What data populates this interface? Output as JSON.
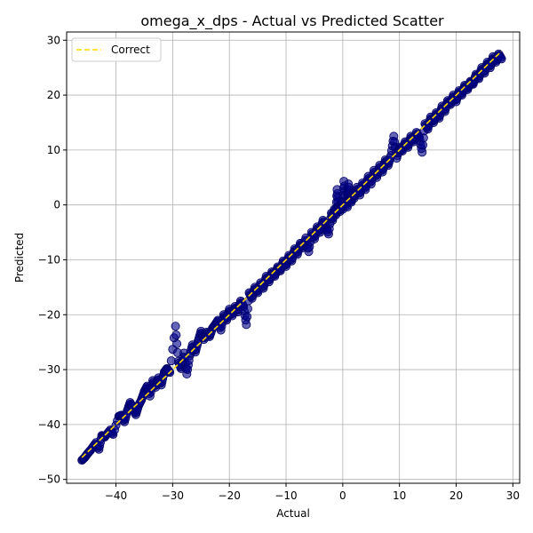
{
  "chart_data": {
    "type": "scatter",
    "title": "omega_x_dps - Actual vs Predicted Scatter",
    "xlabel": "Actual",
    "ylabel": "Predicted",
    "xlim": [
      -48.7,
      31.2
    ],
    "ylim": [
      -50.7,
      31.5
    ],
    "xticks": [
      -40,
      -30,
      -20,
      -10,
      0,
      10,
      20,
      30
    ],
    "yticks": [
      -50,
      -40,
      -30,
      -20,
      -10,
      0,
      10,
      20,
      30
    ],
    "grid": true,
    "legend": {
      "placement": "top-left",
      "entries": [
        "Correct"
      ]
    },
    "colors": {
      "points": "#00008b",
      "points_edge": "#000066",
      "reference_line": "#ffd700"
    },
    "reference_line": {
      "name": "Correct",
      "x": [
        -46,
        28
      ],
      "y": [
        -46,
        28
      ],
      "style": "dashed"
    },
    "series": [
      {
        "points": [
          [
            -46,
            -46.5
          ],
          [
            -45.5,
            -46
          ],
          [
            -45,
            -45.3
          ],
          [
            -44.5,
            -44.7
          ],
          [
            -43.5,
            -43.3
          ],
          [
            -43,
            -44.5
          ],
          [
            -42.5,
            -42
          ],
          [
            -42,
            -42.3
          ],
          [
            -41,
            -41
          ],
          [
            -40.5,
            -41.8
          ],
          [
            -39.5,
            -38.5
          ],
          [
            -39,
            -38.3
          ],
          [
            -38.5,
            -39.5
          ],
          [
            -38,
            -37.5
          ],
          [
            -37.5,
            -36
          ],
          [
            -37,
            -37
          ],
          [
            -36.5,
            -38.2
          ],
          [
            -36,
            -36.5
          ],
          [
            -35.5,
            -35.5
          ],
          [
            -35,
            -34
          ],
          [
            -34.5,
            -33
          ],
          [
            -34,
            -34.8
          ],
          [
            -33.5,
            -32
          ],
          [
            -33,
            -33.2
          ],
          [
            -32.5,
            -31.5
          ],
          [
            -32,
            -32.8
          ],
          [
            -31.5,
            -30.5
          ],
          [
            -31,
            -29.8
          ],
          [
            -30.5,
            -30.5
          ],
          [
            -29.5,
            -22.1
          ],
          [
            -29,
            -28.5
          ],
          [
            -28.5,
            -29.8
          ],
          [
            -28,
            -27
          ],
          [
            -27.5,
            -30.8
          ],
          [
            -27,
            -27.5
          ],
          [
            -26.5,
            -25.5
          ],
          [
            -26,
            -26.8
          ],
          [
            -25.5,
            -24.8
          ],
          [
            -25,
            -23
          ],
          [
            -24.5,
            -24.5
          ],
          [
            -24,
            -23.2
          ],
          [
            -23.5,
            -24
          ],
          [
            -23,
            -22.5
          ],
          [
            -22.5,
            -21.8
          ],
          [
            -22,
            -21
          ],
          [
            -21.5,
            -22.8
          ],
          [
            -21,
            -20
          ],
          [
            -20.5,
            -21
          ],
          [
            -20,
            -19
          ],
          [
            -19.5,
            -20.2
          ],
          [
            -19,
            -18.5
          ],
          [
            -18.5,
            -19.5
          ],
          [
            -18,
            -17.5
          ],
          [
            -17.5,
            -18.5
          ],
          [
            -17,
            -21.8
          ],
          [
            -16.5,
            -16
          ],
          [
            -16,
            -17
          ],
          [
            -15.5,
            -15
          ],
          [
            -15,
            -16
          ],
          [
            -14.5,
            -14.2
          ],
          [
            -14,
            -15.2
          ],
          [
            -13.5,
            -13
          ],
          [
            -13,
            -14
          ],
          [
            -12.5,
            -12.2
          ],
          [
            -12,
            -13
          ],
          [
            -11.5,
            -11.3
          ],
          [
            -11,
            -12
          ],
          [
            -10.5,
            -10.2
          ],
          [
            -10,
            -11.2
          ],
          [
            -9.5,
            -9.2
          ],
          [
            -9,
            -10.2
          ],
          [
            -8.5,
            -8
          ],
          [
            -8,
            -9
          ],
          [
            -7.5,
            -7
          ],
          [
            -7,
            -7.8
          ],
          [
            -6.5,
            -6
          ],
          [
            -6,
            -8.5
          ],
          [
            -5.5,
            -5
          ],
          [
            -5,
            -6.2
          ],
          [
            -4.5,
            -4
          ],
          [
            -4,
            -5
          ],
          [
            -3.5,
            -2.8
          ],
          [
            -3,
            -3.8
          ],
          [
            -2.5,
            -5.3
          ],
          [
            -2,
            -1.5
          ],
          [
            -1.8,
            -2.8
          ],
          [
            -1.5,
            -0.8
          ],
          [
            -1.2,
            -1.8
          ],
          [
            -1,
            2.8
          ],
          [
            -0.8,
            -0.2
          ],
          [
            -0.5,
            -1.2
          ],
          [
            -0.2,
            0.5
          ],
          [
            0,
            -0.8
          ],
          [
            0.2,
            4.3
          ],
          [
            0.5,
            0.8
          ],
          [
            0.8,
            -0.4
          ],
          [
            1,
            3.8
          ],
          [
            1.2,
            1.5
          ],
          [
            1.5,
            0.5
          ],
          [
            1.8,
            2.5
          ],
          [
            2,
            1.2
          ],
          [
            2.5,
            3.2
          ],
          [
            3,
            1.8
          ],
          [
            3.5,
            4
          ],
          [
            4,
            2.8
          ],
          [
            4.5,
            5.2
          ],
          [
            5,
            3.8
          ],
          [
            5.5,
            6.3
          ],
          [
            6,
            5
          ],
          [
            6.5,
            7.2
          ],
          [
            7,
            6
          ],
          [
            7.5,
            8.2
          ],
          [
            8,
            7.2
          ],
          [
            8.5,
            9
          ],
          [
            9,
            12.5
          ],
          [
            9.5,
            8.5
          ],
          [
            10,
            10.5
          ],
          [
            10.5,
            9.8
          ],
          [
            11,
            11.5
          ],
          [
            11.5,
            10.5
          ],
          [
            12,
            12.5
          ],
          [
            12.5,
            11.5
          ],
          [
            13,
            13.2
          ],
          [
            13.5,
            12.3
          ],
          [
            14,
            9.6
          ],
          [
            14.5,
            14.8
          ],
          [
            15,
            13.8
          ],
          [
            15.5,
            16
          ],
          [
            16,
            15
          ],
          [
            16.5,
            16.8
          ],
          [
            17,
            15.8
          ],
          [
            17.5,
            18
          ],
          [
            18,
            17
          ],
          [
            18.5,
            19
          ],
          [
            19,
            18.3
          ],
          [
            19.5,
            20
          ],
          [
            20,
            18.8
          ],
          [
            20.5,
            20.8
          ],
          [
            21,
            20
          ],
          [
            21.5,
            21.8
          ],
          [
            22,
            21
          ],
          [
            22.5,
            22.5
          ],
          [
            23,
            22
          ],
          [
            23.5,
            23.8
          ],
          [
            24,
            23
          ],
          [
            24.5,
            25
          ],
          [
            25,
            24
          ],
          [
            25.5,
            26
          ],
          [
            26,
            25
          ],
          [
            26.5,
            27
          ],
          [
            27,
            26
          ],
          [
            27.5,
            27.5
          ],
          [
            28,
            26.6
          ]
        ]
      }
    ]
  }
}
